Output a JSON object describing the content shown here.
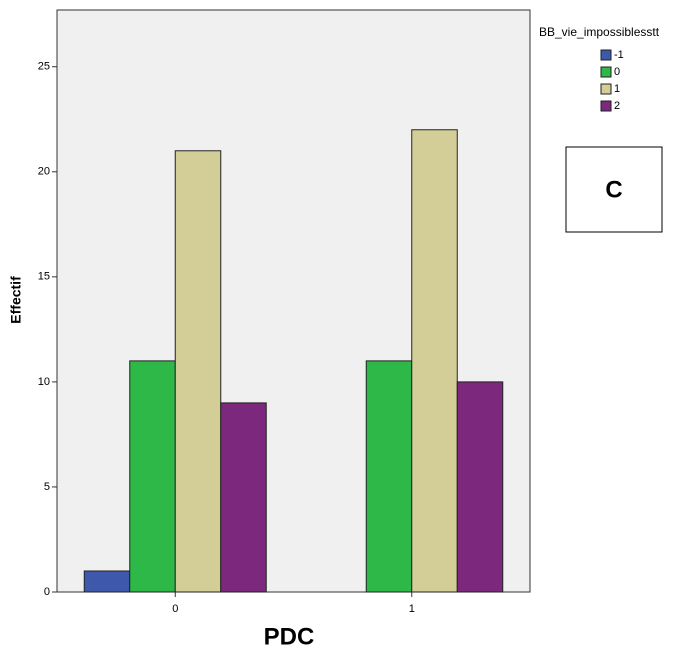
{
  "chart_data": {
    "type": "bar",
    "x_label": "PDC",
    "y_label": "Effectif",
    "categories": [
      "0",
      "1"
    ],
    "legend_title": "BB_vie_impossiblesstt",
    "series": [
      {
        "name": "-1",
        "color": "#3e58ac",
        "values": [
          1,
          null
        ]
      },
      {
        "name": "0",
        "color": "#2eb848",
        "values": [
          11,
          11
        ]
      },
      {
        "name": "1",
        "color": "#d3ce97",
        "values": [
          21,
          22
        ]
      },
      {
        "name": "2",
        "color": "#7b287d",
        "values": [
          9,
          10
        ]
      }
    ],
    "ylim": [
      0,
      27.7
    ],
    "yticks": [
      0,
      5,
      10,
      15,
      20,
      25
    ],
    "annotation": "C"
  }
}
